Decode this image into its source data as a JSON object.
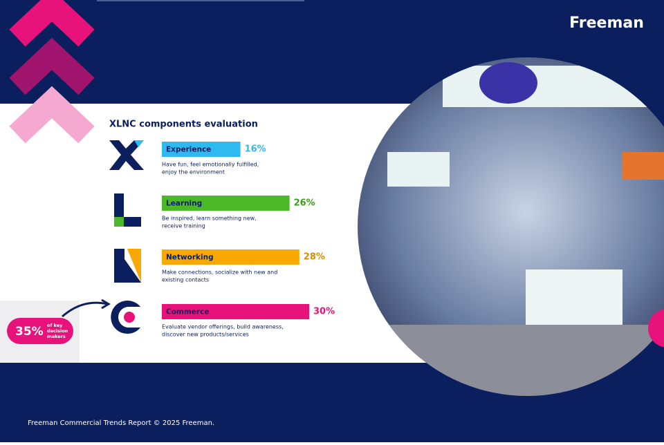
{
  "brand": "Freeman",
  "footer": "Freeman Commercial Trends Report © 2025 Freeman.",
  "callout": {
    "value_label": "35%",
    "text": [
      "of key",
      "decision",
      "makers"
    ]
  },
  "chart_data": {
    "type": "bar",
    "title": "XLNC components evaluation",
    "categories": [
      "Experience",
      "Learning",
      "Networking",
      "Commerce"
    ],
    "values": [
      16,
      26,
      28,
      30
    ],
    "value_labels": [
      "16%",
      "26%",
      "28%",
      "30%"
    ],
    "colors": [
      "#2fb9f1",
      "#4cb828",
      "#f8a800",
      "#e8137a"
    ],
    "label_colors": [
      "#2fb9f1",
      "#3e9e20",
      "#d88e00",
      "#e8137a"
    ],
    "descriptions": [
      [
        "Have fun, feel emotionally fulfilled,",
        "enjoy the environment"
      ],
      [
        "Be inspired, learn something new,",
        "receive training"
      ],
      [
        "Make connections, socialize with new and",
        "existing contacts"
      ],
      [
        "Evaluate vendor offerings, build awareness,",
        "discover new products/services"
      ]
    ]
  }
}
